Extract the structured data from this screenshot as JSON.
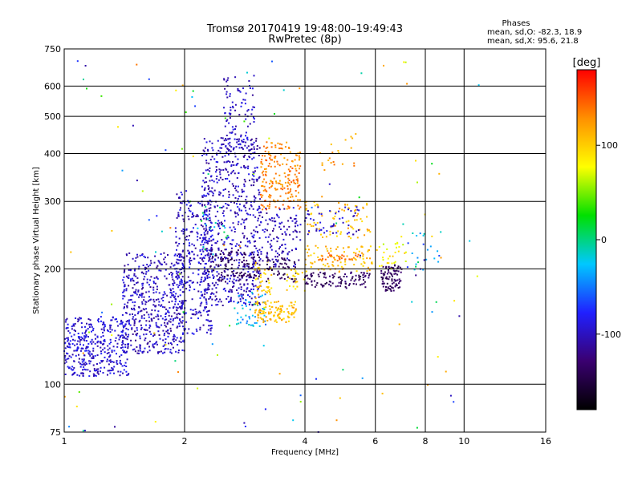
{
  "header": {
    "title": "Tromsø 20170419 19:48:00–19:49:43",
    "subtitle": "RwPretec (8p)"
  },
  "stats": {
    "heading": "Phases",
    "line_o": "mean, sd,O: -82.3, 18.9",
    "line_x": "mean, sd,X:  95.6, 21.8"
  },
  "chart_data": {
    "type": "scatter",
    "xlabel": "Frequency [MHz]",
    "ylabel": "Stationary phase Virtual Height [km]",
    "x_scale": "log",
    "y_scale": "log",
    "xlim": [
      1,
      16
    ],
    "ylim": [
      75,
      750
    ],
    "x_ticks": [
      1,
      2,
      4,
      6,
      8,
      10,
      16
    ],
    "y_ticks": [
      75,
      100,
      200,
      300,
      400,
      500,
      600,
      750
    ],
    "grid": true,
    "colorbar": {
      "label": "[deg]",
      "range": [
        -180,
        180
      ],
      "ticks": [
        100,
        0,
        -100
      ],
      "colors": [
        "#000000",
        "#3a0070",
        "#2020ff",
        "#00c8ff",
        "#00e000",
        "#ffff00",
        "#ff9000",
        "#ff0000"
      ]
    },
    "clusters": [
      {
        "x": [
          1.0,
          1.45
        ],
        "y": [
          105,
          150
        ],
        "phase": [
          -112,
          -75
        ],
        "count": 380
      },
      {
        "x": [
          1.4,
          2.0
        ],
        "y": [
          120,
          220
        ],
        "phase": [
          -120,
          -80
        ],
        "count": 520
      },
      {
        "x": [
          1.9,
          2.35
        ],
        "y": [
          135,
          320
        ],
        "phase": [
          -120,
          -75
        ],
        "count": 330
      },
      {
        "x": [
          2.2,
          3.1
        ],
        "y": [
          160,
          440
        ],
        "phase": [
          -120,
          -80
        ],
        "count": 650
      },
      {
        "x": [
          2.5,
          3.0
        ],
        "y": [
          400,
          640
        ],
        "phase": [
          -115,
          -80
        ],
        "count": 110
      },
      {
        "x": [
          2.3,
          3.1
        ],
        "y": [
          185,
          225
        ],
        "phase": [
          -155,
          -120
        ],
        "count": 110
      },
      {
        "x": [
          2.2,
          2.6
        ],
        "y": [
          215,
          320
        ],
        "phase": [
          -30,
          30
        ],
        "count": 18
      },
      {
        "x": [
          2.7,
          3.2
        ],
        "y": [
          140,
          175
        ],
        "phase": [
          -60,
          -10
        ],
        "count": 45
      },
      {
        "x": [
          3.0,
          3.8
        ],
        "y": [
          145,
          165
        ],
        "phase": [
          90,
          125
        ],
        "count": 120
      },
      {
        "x": [
          3.0,
          3.3
        ],
        "y": [
          165,
          210
        ],
        "phase": [
          80,
          115
        ],
        "count": 45
      },
      {
        "x": [
          3.1,
          3.9
        ],
        "y": [
          285,
          430
        ],
        "phase": [
          115,
          150
        ],
        "count": 200
      },
      {
        "x": [
          3.1,
          3.9
        ],
        "y": [
          200,
          290
        ],
        "phase": [
          -120,
          -85
        ],
        "count": 120
      },
      {
        "x": [
          3.2,
          3.8
        ],
        "y": [
          185,
          215
        ],
        "phase": [
          -150,
          -130
        ],
        "count": 50
      },
      {
        "x": [
          3.6,
          4.0
        ],
        "y": [
          175,
          200
        ],
        "phase": [
          80,
          110
        ],
        "count": 25
      },
      {
        "x": [
          4.0,
          5.9
        ],
        "y": [
          178,
          196
        ],
        "phase": [
          -150,
          -120
        ],
        "count": 100
      },
      {
        "x": [
          4.0,
          5.9
        ],
        "y": [
          196,
          230
        ],
        "phase": [
          90,
          125
        ],
        "count": 90
      },
      {
        "x": [
          4.3,
          5.6
        ],
        "y": [
          210,
          220
        ],
        "phase": [
          125,
          150
        ],
        "count": 30
      },
      {
        "x": [
          4.0,
          5.9
        ],
        "y": [
          240,
          300
        ],
        "phase": [
          90,
          130
        ],
        "count": 80
      },
      {
        "x": [
          4.0,
          5.5
        ],
        "y": [
          245,
          290
        ],
        "phase": [
          -115,
          -80
        ],
        "count": 50
      },
      {
        "x": [
          4.2,
          5.6
        ],
        "y": [
          350,
          460
        ],
        "phase": [
          105,
          140
        ],
        "count": 20
      },
      {
        "x": [
          6.2,
          7.0
        ],
        "y": [
          175,
          205
        ],
        "phase": [
          -150,
          -125
        ],
        "count": 90
      },
      {
        "x": [
          6.0,
          7.2
        ],
        "y": [
          200,
          250
        ],
        "phase": [
          60,
          110
        ],
        "count": 30
      },
      {
        "x": [
          7.2,
          9.2
        ],
        "y": [
          195,
          250
        ],
        "phase": [
          -110,
          10
        ],
        "count": 25
      },
      {
        "x": [
          1.0,
          11.0
        ],
        "y": [
          75,
          700
        ],
        "phase": [
          -120,
          140
        ],
        "count": 130
      }
    ]
  }
}
